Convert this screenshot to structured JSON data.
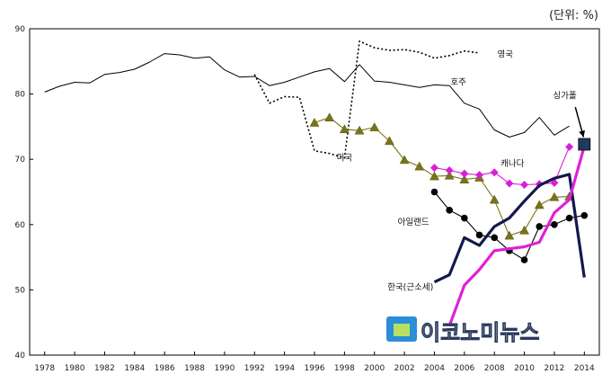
{
  "unit_note": "(단위: %)",
  "watermark": "이코노미뉴스",
  "chart_data": {
    "type": "line",
    "ylim": [
      40,
      90
    ],
    "yticks": [
      40,
      50,
      60,
      70,
      80,
      90
    ],
    "xlim": [
      1977,
      2015
    ],
    "xticks": [
      1978,
      1980,
      1982,
      1984,
      1986,
      1988,
      1990,
      1992,
      1994,
      1996,
      1998,
      2000,
      2002,
      2004,
      2006,
      2008,
      2010,
      2012,
      2014
    ],
    "series": [
      {
        "name": "영국",
        "color": "#000000",
        "style": "dotted",
        "x": [
          1992,
          1993,
          1994,
          1995,
          1996,
          1997,
          1998,
          1999,
          2000,
          2001,
          2002,
          2003,
          2004,
          2005,
          2006,
          2007
        ],
        "y": [
          83,
          78.6,
          79.6,
          79.5,
          71.3,
          70.9,
          70.2,
          88.1,
          87.1,
          86.7,
          86.8,
          86.4,
          85.5,
          85.9,
          86.6,
          86.3
        ]
      },
      {
        "name": "호주",
        "color": "#000000",
        "style": "solid",
        "x": [
          1978,
          1979,
          1980,
          1981,
          1982,
          1983,
          1984,
          1985,
          1986,
          1987,
          1988,
          1989,
          1990,
          1991,
          1992,
          1993,
          1994,
          1995,
          1996,
          1997,
          1998,
          1999,
          2000,
          2001,
          2002,
          2003,
          2004,
          2005,
          2006,
          2007,
          2008,
          2009,
          2010,
          2011,
          2012,
          2013
        ],
        "y": [
          80.3,
          81.2,
          81.8,
          81.7,
          83,
          83.3,
          83.8,
          84.9,
          86.2,
          86,
          85.5,
          85.7,
          83.7,
          82.6,
          82.7,
          81.3,
          81.8,
          82.6,
          83.4,
          83.9,
          81.9,
          84.5,
          82,
          81.8,
          81.4,
          81,
          81.4,
          81.3,
          78.6,
          77.7,
          74.5,
          73.4,
          74.1,
          76.4,
          73.7,
          75.1
        ]
      },
      {
        "name": "미국",
        "color": "#7a7418",
        "style": "triangle",
        "x": [
          1996,
          1997,
          1998,
          1999,
          2000,
          2001,
          2002,
          2003,
          2004,
          2005,
          2006,
          2007,
          2008,
          2009,
          2010,
          2011,
          2012,
          2013
        ],
        "y": [
          75.6,
          76.4,
          74.6,
          74.4,
          74.9,
          72.8,
          69.9,
          68.9,
          67.4,
          67.5,
          66.9,
          67.2,
          63.8,
          58.3,
          59.1,
          63,
          64.2,
          64.3
        ]
      },
      {
        "name": "캐나다",
        "color": "#d81ed8",
        "style": "diamond",
        "x": [
          2004,
          2005,
          2006,
          2007,
          2008,
          2009,
          2010,
          2011,
          2012,
          2013
        ],
        "y": [
          68.7,
          68.3,
          67.8,
          67.6,
          68,
          66.3,
          66.1,
          66.2,
          66.4,
          71.9
        ]
      },
      {
        "name": "아일랜드",
        "color": "#000000",
        "style": "circle",
        "x": [
          2004,
          2005,
          2006,
          2007,
          2008,
          2009,
          2010,
          2011,
          2012,
          2013,
          2014
        ],
        "y": [
          65,
          62.2,
          61,
          58.4,
          58,
          56,
          54.6,
          59.7,
          60,
          61,
          61.4
        ]
      },
      {
        "name": "한국(근소세)",
        "color": "#14184e",
        "style": "thick",
        "x": [
          2004,
          2005,
          2006,
          2007,
          2008,
          2009,
          2010,
          2011,
          2012,
          2013,
          2014
        ],
        "y": [
          51.2,
          52.3,
          58,
          56.8,
          59.7,
          61,
          63.6,
          66,
          67.1,
          67.7,
          51.9
        ]
      },
      {
        "name": "",
        "color": "#e020d8",
        "style": "thick",
        "x": [
          2005,
          2006,
          2007,
          2008,
          2009,
          2010,
          2011,
          2012,
          2013,
          2014
        ],
        "y": [
          44.5,
          50.7,
          53.1,
          56,
          56.3,
          56.6,
          57.3,
          61.8,
          63.8,
          72
        ]
      },
      {
        "name": "싱가폴",
        "color": "#1e3a5f",
        "style": "square",
        "x": [
          2014
        ],
        "y": [
          72.3
        ]
      }
    ],
    "annotations": [
      {
        "text": "영국",
        "series": 0
      },
      {
        "text": "호주",
        "series": 1
      },
      {
        "text": "미국",
        "series": 2
      },
      {
        "text": "캐나다",
        "series": 3
      },
      {
        "text": "아일랜드",
        "series": 4
      },
      {
        "text": "한국(근소세)",
        "series": 5
      },
      {
        "text": "싱가폴",
        "series": 7
      }
    ]
  }
}
